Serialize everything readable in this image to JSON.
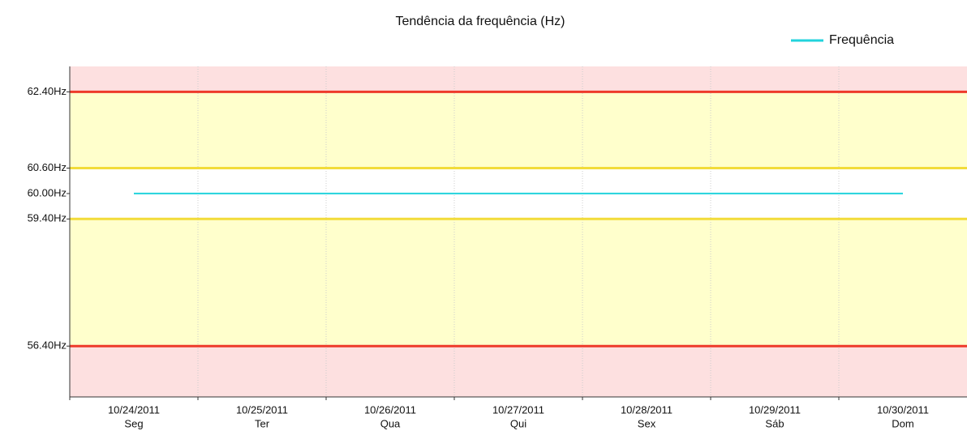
{
  "chart_data": {
    "type": "line",
    "title": "Tendência da frequência (Hz)",
    "categories": [
      "10/24/2011",
      "10/25/2011",
      "10/26/2011",
      "10/27/2011",
      "10/28/2011",
      "10/29/2011",
      "10/30/2011"
    ],
    "weekdays": [
      "Seg",
      "Ter",
      "Qua",
      "Qui",
      "Sex",
      "Sáb",
      "Dom"
    ],
    "series": [
      {
        "name": "Frequência",
        "color": "#22d3dc",
        "values": [
          60.0,
          60.0,
          60.0,
          60.0,
          60.0,
          60.0,
          60.0
        ]
      }
    ],
    "ylim": [
      55.2,
      63.0
    ],
    "yticks": [
      {
        "value": 62.4,
        "label": "62.40Hz"
      },
      {
        "value": 60.6,
        "label": "60.60Hz"
      },
      {
        "value": 60.0,
        "label": "60.00Hz"
      },
      {
        "value": 59.4,
        "label": "59.40Hz"
      },
      {
        "value": 56.4,
        "label": "56.40Hz"
      }
    ],
    "limits": [
      {
        "value": 62.4,
        "color": "#ee3a2a"
      },
      {
        "value": 60.6,
        "color": "#f2dc3a"
      },
      {
        "value": 59.4,
        "color": "#f2dc3a"
      },
      {
        "value": 56.4,
        "color": "#ee3a2a"
      }
    ],
    "legend": "top-right",
    "grid": true
  }
}
